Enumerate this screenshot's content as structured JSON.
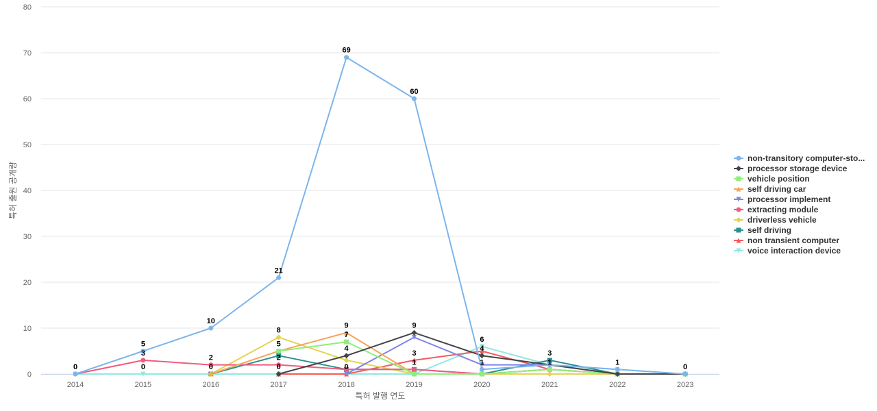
{
  "chart_data": {
    "type": "line",
    "title": "",
    "xlabel": "특허 발행 연도",
    "ylabel": "특허 출원 공개량",
    "x": [
      "2014",
      "2015",
      "2016",
      "2017",
      "2018",
      "2019",
      "2020",
      "2021",
      "2022",
      "2023"
    ],
    "ylim": [
      0,
      80
    ],
    "yticks": [
      0,
      10,
      20,
      30,
      40,
      50,
      60,
      70,
      80
    ],
    "grid": true,
    "legend_position": "right",
    "series": [
      {
        "name": "non-transitory computer-sto...",
        "color": "#7cb5ec",
        "marker": "circle",
        "values": [
          0,
          5,
          10,
          21,
          69,
          60,
          1,
          2,
          1,
          0
        ]
      },
      {
        "name": "processor storage device",
        "color": "#434348",
        "marker": "diamond",
        "values": [
          null,
          null,
          null,
          0,
          4,
          9,
          4,
          2,
          0,
          0
        ]
      },
      {
        "name": "vehicle position",
        "color": "#90ed7d",
        "marker": "square",
        "values": [
          null,
          null,
          null,
          5,
          7,
          0,
          0,
          1,
          0,
          0
        ]
      },
      {
        "name": "self driving car",
        "color": "#f7a35c",
        "marker": "triangle",
        "values": [
          null,
          null,
          0,
          5,
          9,
          0,
          0,
          1,
          0,
          0
        ]
      },
      {
        "name": "processor implement",
        "color": "#8085e9",
        "marker": "triangle-down",
        "values": [
          null,
          null,
          null,
          null,
          0,
          8,
          2,
          2,
          0,
          0
        ]
      },
      {
        "name": "extracting module",
        "color": "#f15c80",
        "marker": "circle",
        "values": [
          0,
          3,
          2,
          2,
          1,
          1,
          0,
          1,
          0,
          0
        ]
      },
      {
        "name": "driverless vehicle",
        "color": "#e4d354",
        "marker": "diamond",
        "values": [
          null,
          null,
          0,
          8,
          3,
          0,
          0,
          0,
          0,
          0
        ]
      },
      {
        "name": "self driving",
        "color": "#2b908f",
        "marker": "square",
        "values": [
          null,
          null,
          0,
          4,
          1,
          1,
          0,
          3,
          0,
          0
        ]
      },
      {
        "name": "non transient computer",
        "color": "#f45b5b",
        "marker": "triangle",
        "values": [
          null,
          null,
          null,
          0,
          0,
          3,
          5,
          1,
          0,
          0
        ]
      },
      {
        "name": "voice interaction device",
        "color": "#91e8e1",
        "marker": "triangle-down",
        "values": [
          0,
          0,
          0,
          0,
          0,
          0,
          6,
          2,
          1,
          0
        ]
      }
    ],
    "data_labels": [
      {
        "x": "2014",
        "text": "0"
      },
      {
        "x": "2015",
        "text": "5"
      },
      {
        "x": "2015",
        "text": "3"
      },
      {
        "x": "2015",
        "text": "0"
      },
      {
        "x": "2016",
        "text": "10"
      },
      {
        "x": "2016",
        "text": "2"
      },
      {
        "x": "2016",
        "text": "0"
      },
      {
        "x": "2017",
        "text": "21"
      },
      {
        "x": "2017",
        "text": "8"
      },
      {
        "x": "2017",
        "text": "5"
      },
      {
        "x": "2017",
        "text": "2"
      },
      {
        "x": "2017",
        "text": "0"
      },
      {
        "x": "2018",
        "text": "69"
      },
      {
        "x": "2018",
        "text": "9"
      },
      {
        "x": "2018",
        "text": "7"
      },
      {
        "x": "2018",
        "text": "4"
      },
      {
        "x": "2018",
        "text": "0"
      },
      {
        "x": "2019",
        "text": "60"
      },
      {
        "x": "2019",
        "text": "9"
      },
      {
        "x": "2019",
        "text": "3"
      },
      {
        "x": "2019",
        "text": "1"
      },
      {
        "x": "2020",
        "text": "6"
      },
      {
        "x": "2020",
        "text": "4"
      },
      {
        "x": "2020",
        "text": "1"
      },
      {
        "x": "2021",
        "text": "3"
      },
      {
        "x": "2021",
        "text": "1"
      },
      {
        "x": "2022",
        "text": "1"
      },
      {
        "x": "2023",
        "text": "0"
      }
    ]
  }
}
